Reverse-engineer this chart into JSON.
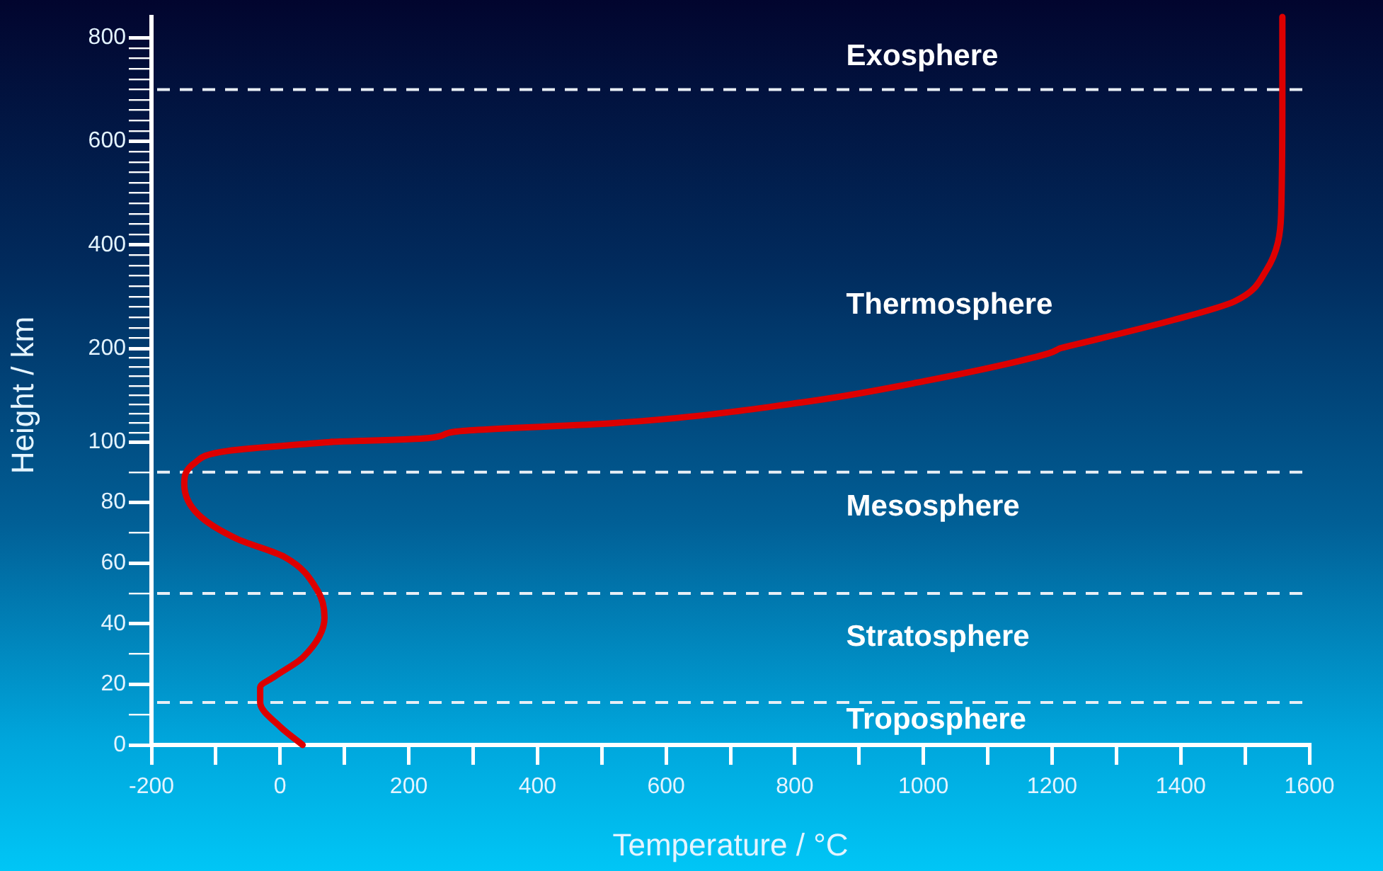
{
  "chart_data": [
    {
      "type": "line",
      "tick_labels": "y",
      "xlim": [
        -200,
        1600
      ],
      "ylim": [
        200,
        840
      ],
      "yticks": [
        {
          "value": 220,
          "label": null
        },
        {
          "value": 240,
          "label": null
        },
        {
          "value": 260,
          "label": null
        },
        {
          "value": 280,
          "label": null
        },
        {
          "value": 300,
          "label": null
        },
        {
          "value": 320,
          "label": null
        },
        {
          "value": 340,
          "label": null
        },
        {
          "value": 360,
          "label": null
        },
        {
          "value": 380,
          "label": null
        },
        400,
        {
          "value": 420,
          "label": null
        },
        {
          "value": 440,
          "label": null
        },
        {
          "value": 460,
          "label": null
        },
        {
          "value": 480,
          "label": null
        },
        {
          "value": 500,
          "label": null
        },
        {
          "value": 520,
          "label": null
        },
        {
          "value": 540,
          "label": null
        },
        {
          "value": 560,
          "label": null
        },
        {
          "value": 580,
          "label": null
        },
        600,
        {
          "value": 620,
          "label": null
        },
        {
          "value": 640,
          "label": null
        },
        {
          "value": 660,
          "label": null
        },
        {
          "value": 680,
          "label": null
        },
        {
          "value": 700,
          "label": null
        },
        {
          "value": 720,
          "label": null
        },
        {
          "value": 740,
          "label": null
        },
        {
          "value": 760,
          "label": null
        },
        {
          "value": 780,
          "label": null
        },
        800
      ],
      "grid": false,
      "legend": false,
      "marker": "none",
      "line_style": "solid",
      "series": [
        {
          "color": "#dd0000",
          "x": [
            1212,
            1389,
            1484,
            1533,
            1556,
            1558,
            1558
          ],
          "values": [
            200,
            255,
            291,
            351,
            458,
            696,
            840
          ]
        }
      ],
      "ref_lines": [
        {
          "axis": "y",
          "value": 700,
          "color": "#e8eef5",
          "line_style": "dashed"
        }
      ],
      "annotations": [
        "Exosphere",
        "Thermosphere"
      ]
    },
    {
      "type": "line",
      "tick_labels": "y",
      "ylabel": "Height / km",
      "xlim": [
        -200,
        1600
      ],
      "ylim": [
        100,
        200
      ],
      "yticks": [
        100,
        {
          "value": 110,
          "label": null
        },
        {
          "value": 120,
          "label": null
        },
        {
          "value": 130,
          "label": null
        },
        {
          "value": 140,
          "label": null
        },
        {
          "value": 150,
          "label": null
        },
        {
          "value": 160,
          "label": null
        },
        {
          "value": 170,
          "label": null
        },
        {
          "value": 180,
          "label": null
        },
        {
          "value": 190,
          "label": null
        },
        200
      ],
      "grid": false,
      "legend": false,
      "marker": "none",
      "line_style": "solid",
      "series": [
        {
          "color": "#dd0000",
          "x": [
            80,
            229,
            273,
            518,
            809,
            1002,
            1196,
            1212
          ],
          "values": [
            100,
            104,
            111,
            120,
            142,
            165,
            195,
            200
          ]
        }
      ]
    },
    {
      "type": "line",
      "xlabel": "Temperature / °C",
      "xlim": [
        -200,
        1600
      ],
      "xticks": [
        -200,
        {
          "value": -100,
          "label": null
        },
        0,
        {
          "value": 100,
          "label": null
        },
        200,
        {
          "value": 300,
          "label": null
        },
        400,
        {
          "value": 500,
          "label": null
        },
        600,
        {
          "value": 700,
          "label": null
        },
        800,
        {
          "value": 900,
          "label": null
        },
        1000,
        {
          "value": 1100,
          "label": null
        },
        1200,
        {
          "value": 1300,
          "label": null
        },
        1400,
        {
          "value": 1500,
          "label": null
        },
        1600
      ],
      "ylim": [
        0,
        100
      ],
      "yticks": [
        0,
        {
          "value": 10,
          "label": null
        },
        20,
        {
          "value": 30,
          "label": null
        },
        40,
        {
          "value": 50,
          "label": null
        },
        60,
        {
          "value": 70,
          "label": null
        },
        80,
        {
          "value": 90,
          "label": null
        }
      ],
      "grid": false,
      "legend": false,
      "marker": "none",
      "line_style": "solid",
      "series": [
        {
          "color": "#dd0000",
          "x": [
            35,
            0,
            -31,
            -31,
            -9,
            36,
            69,
            58,
            7,
            -67,
            -127,
            -149,
            -133,
            -82,
            80
          ],
          "values": [
            0,
            6,
            14,
            19,
            22.5,
            29,
            42,
            51,
            62,
            68,
            76,
            86,
            93,
            97,
            100
          ]
        }
      ],
      "ref_lines": [
        {
          "axis": "y",
          "value": 14,
          "color": "#e8eef5",
          "line_style": "dashed"
        },
        {
          "axis": "y",
          "value": 50,
          "color": "#e8eef5",
          "line_style": "dashed"
        },
        {
          "axis": "y",
          "value": 90,
          "color": "#e8eef5",
          "line_style": "dashed"
        }
      ],
      "annotations": [
        "Mesosphere",
        "Stratosphere",
        "Troposphere"
      ]
    }
  ]
}
